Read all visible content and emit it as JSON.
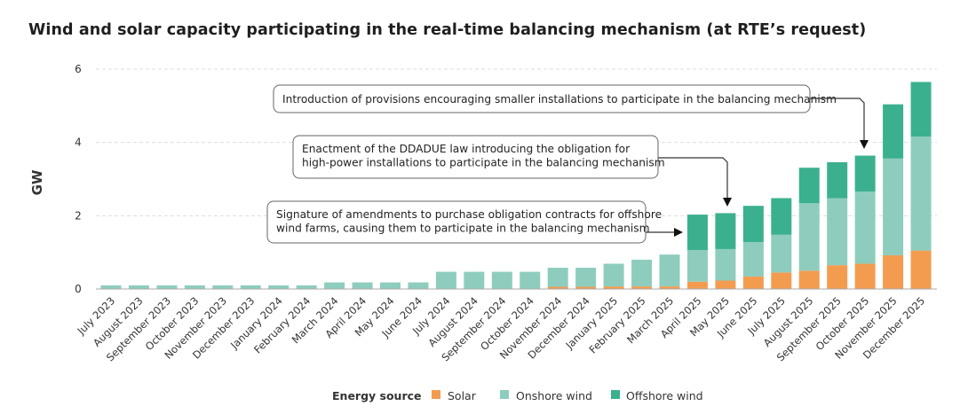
{
  "chart_data": {
    "type": "bar",
    "stacked": true,
    "title": "Wind and solar capacity participating in the real-time balancing mechanism (at RTE’s request)",
    "ylabel": "GW",
    "xlabel": "",
    "ylim": [
      0,
      6
    ],
    "yticks": [
      "0",
      "2",
      "4",
      "6"
    ],
    "grid": true,
    "legend_title": "Energy source",
    "legend_position": "bottom",
    "categories": [
      "July 2023",
      "August 2023",
      "September 2023",
      "October 2023",
      "November 2023",
      "December 2023",
      "January 2024",
      "February 2024",
      "March 2024",
      "April 2024",
      "May 2024",
      "June 2024",
      "July 2024",
      "August 2024",
      "September 2024",
      "October 2024",
      "November 2024",
      "December 2024",
      "January 2025",
      "February 2025",
      "March 2025",
      "April 2025",
      "May 2025",
      "June 2025",
      "July 2025",
      "August 2025",
      "September 2025",
      "October 2025",
      "November 2025",
      "December 2025"
    ],
    "series": [
      {
        "name": "Solar",
        "color": "#F39C50",
        "values": [
          0,
          0,
          0,
          0,
          0,
          0,
          0,
          0,
          0,
          0,
          0,
          0,
          0,
          0,
          0,
          0,
          0.06,
          0.06,
          0.07,
          0.07,
          0.07,
          0.2,
          0.23,
          0.34,
          0.45,
          0.5,
          0.65,
          0.69,
          0.92,
          1.05
        ]
      },
      {
        "name": "Onshore wind",
        "color": "#8ECDBE",
        "values": [
          0.1,
          0.1,
          0.1,
          0.1,
          0.1,
          0.1,
          0.1,
          0.1,
          0.18,
          0.18,
          0.18,
          0.18,
          0.47,
          0.47,
          0.47,
          0.47,
          0.52,
          0.52,
          0.62,
          0.73,
          0.87,
          0.86,
          0.86,
          0.94,
          1.03,
          1.84,
          1.83,
          1.97,
          2.64,
          3.11
        ]
      },
      {
        "name": "Offshore wind",
        "color": "#3BB08F",
        "values": [
          0,
          0,
          0,
          0,
          0,
          0,
          0,
          0,
          0,
          0,
          0,
          0,
          0,
          0,
          0,
          0,
          0,
          0,
          0,
          0,
          0,
          0.97,
          0.98,
          0.99,
          1.0,
          0.97,
          0.98,
          0.98,
          1.48,
          1.49
        ]
      }
    ],
    "annotations": [
      {
        "text": [
          "Introduction of provisions encouraging smaller installations to participate in the balancing mechanism"
        ],
        "target": "October 2025"
      },
      {
        "text": [
          "Enactment of the DDADUE law introducing the obligation for",
          "high-power installations to participate in the balancing mechanism"
        ],
        "target": "May 2025"
      },
      {
        "text": [
          "Signature of amendments to purchase obligation contracts for offshore",
          "wind farms, causing them to participate in the balancing mechanism"
        ],
        "target": "April 2025"
      }
    ]
  }
}
